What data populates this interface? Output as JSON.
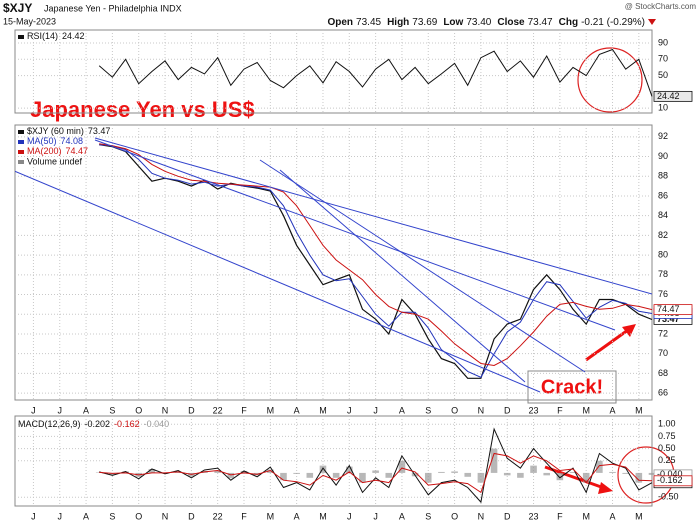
{
  "header": {
    "symbol": "$XJY",
    "name": "Japanese Yen - Philadelphia INDX",
    "date": "15-May-2023",
    "quote": [
      {
        "name": "Open",
        "value": "73.45"
      },
      {
        "name": "High",
        "value": "73.69"
      },
      {
        "name": "Low",
        "value": "73.40"
      },
      {
        "name": "Close",
        "value": "73.47"
      },
      {
        "name": "Chg",
        "value": "-0.21 (-0.29%)"
      }
    ],
    "watermark": "@ StockCharts.com"
  },
  "annotations": {
    "title": "Japanese Yen vs US$",
    "crack": "Crack!"
  },
  "chart_data": [
    {
      "type": "line",
      "grid": true,
      "xtick_labels": false,
      "x": [
        2.5,
        3,
        3.5,
        4,
        4.5,
        5,
        5.5,
        6,
        6.5,
        7,
        7.5,
        8,
        8.5,
        9,
        9.5,
        10,
        10.5,
        11,
        11.5,
        12,
        12.5,
        13,
        13.5,
        14,
        14.5,
        15,
        15.5,
        16,
        16.5,
        17,
        17.5,
        18,
        18.5,
        19,
        19.5,
        20,
        20.5,
        21,
        21.5,
        22,
        22.5,
        23,
        23.5
      ],
      "xlim": [
        -0.7,
        23.5
      ],
      "xticks": [
        {
          "value": 0,
          "label": "J"
        },
        {
          "value": 1,
          "label": "J"
        },
        {
          "value": 2,
          "label": "A"
        },
        {
          "value": 3,
          "label": "S"
        },
        {
          "value": 4,
          "label": "O"
        },
        {
          "value": 5,
          "label": "N"
        },
        {
          "value": 6,
          "label": "D"
        },
        {
          "value": 7,
          "label": "22"
        },
        {
          "value": 8,
          "label": "F"
        },
        {
          "value": 9,
          "label": "M"
        },
        {
          "value": 10,
          "label": "A"
        },
        {
          "value": 11,
          "label": "M"
        },
        {
          "value": 12,
          "label": "J"
        },
        {
          "value": 13,
          "label": "J"
        },
        {
          "value": 14,
          "label": "A"
        },
        {
          "value": 15,
          "label": "S"
        },
        {
          "value": 16,
          "label": "O"
        },
        {
          "value": 17,
          "label": "N"
        },
        {
          "value": 18,
          "label": "D"
        },
        {
          "value": 19,
          "label": "23"
        },
        {
          "value": 20,
          "label": "F"
        },
        {
          "value": 21,
          "label": "M"
        },
        {
          "value": 22,
          "label": "A"
        },
        {
          "value": 23,
          "label": "M"
        }
      ],
      "ylim": [
        4,
        106
      ],
      "yticks": [
        10,
        50,
        70,
        90
      ],
      "series": [
        {
          "name": "RSI(14)",
          "color": "#111111",
          "values": [
            62,
            48,
            70,
            40,
            55,
            68,
            45,
            60,
            52,
            72,
            38,
            58,
            66,
            44,
            35,
            50,
            62,
            41,
            67,
            55,
            36,
            58,
            70,
            45,
            60,
            40,
            52,
            65,
            38,
            72,
            80,
            55,
            68,
            48,
            74,
            42,
            60,
            50,
            76,
            82,
            58,
            70,
            24.42
          ]
        }
      ]
    },
    {
      "type": "line",
      "grid": true,
      "xtick_labels": true,
      "x": [
        2.5,
        3,
        3.5,
        4,
        4.5,
        5,
        5.5,
        6,
        6.5,
        7,
        7.5,
        8,
        8.5,
        9,
        9.5,
        10,
        10.5,
        11,
        11.5,
        12,
        12.5,
        13,
        13.5,
        14,
        14.5,
        15,
        15.5,
        16,
        16.5,
        17,
        17.5,
        18,
        18.5,
        19,
        19.5,
        20,
        20.5,
        21,
        21.5,
        22,
        22.5,
        23,
        23.5
      ],
      "xlim": [
        -0.7,
        23.5
      ],
      "xticks": [
        {
          "value": 0,
          "label": "J"
        },
        {
          "value": 1,
          "label": "J"
        },
        {
          "value": 2,
          "label": "A"
        },
        {
          "value": 3,
          "label": "S"
        },
        {
          "value": 4,
          "label": "O"
        },
        {
          "value": 5,
          "label": "N"
        },
        {
          "value": 6,
          "label": "D"
        },
        {
          "value": 7,
          "label": "22"
        },
        {
          "value": 8,
          "label": "F"
        },
        {
          "value": 9,
          "label": "M"
        },
        {
          "value": 10,
          "label": "A"
        },
        {
          "value": 11,
          "label": "M"
        },
        {
          "value": 12,
          "label": "J"
        },
        {
          "value": 13,
          "label": "J"
        },
        {
          "value": 14,
          "label": "A"
        },
        {
          "value": 15,
          "label": "S"
        },
        {
          "value": 16,
          "label": "O"
        },
        {
          "value": 17,
          "label": "N"
        },
        {
          "value": 18,
          "label": "D"
        },
        {
          "value": 19,
          "label": "23"
        },
        {
          "value": 20,
          "label": "F"
        },
        {
          "value": 21,
          "label": "M"
        },
        {
          "value": 22,
          "label": "A"
        },
        {
          "value": 23,
          "label": "M"
        }
      ],
      "ylim": [
        65.3,
        93.2
      ],
      "yticks": [
        66,
        68,
        70,
        72,
        74,
        76,
        78,
        80,
        82,
        84,
        86,
        88,
        90,
        92
      ],
      "legend_note": "Volume undef",
      "series": [
        {
          "name": "$XJY (60 min)",
          "color": "#111111",
          "values": [
            91.2,
            91,
            90.5,
            89,
            87.5,
            87.8,
            87.5,
            87,
            87.6,
            86.7,
            87.3,
            87,
            86.8,
            86.5,
            84,
            81,
            79,
            77,
            77.5,
            78,
            74.5,
            73.5,
            72,
            75.5,
            74,
            71.5,
            69.5,
            69,
            67.5,
            67.5,
            71.5,
            73,
            73.5,
            76.5,
            78,
            76.5,
            74.5,
            73,
            75.5,
            75.5,
            75,
            74,
            73.47
          ]
        },
        {
          "name": "MA(50)",
          "color": "#2233bb",
          "values": [
            91.2,
            91.1,
            90.7,
            89.7,
            88.3,
            87.8,
            87.6,
            87.2,
            87.4,
            87,
            87.2,
            87,
            86.9,
            86.6,
            85,
            82.3,
            80,
            78,
            77.4,
            77.6,
            75.8,
            74,
            72.8,
            74.2,
            74.2,
            72.6,
            70.4,
            69.4,
            68.2,
            67.6,
            70,
            72.2,
            73.2,
            75.5,
            77.3,
            77,
            75.3,
            73.6,
            74.7,
            75.4,
            75.1,
            74.3,
            74.08
          ]
        },
        {
          "name": "MA(200)",
          "color": "#cc1111",
          "values": [
            91.3,
            91.1,
            90.8,
            90.2,
            89.2,
            88.5,
            88,
            87.6,
            87.5,
            87.3,
            87.2,
            87.1,
            87,
            86.9,
            86.4,
            85,
            83,
            81,
            79.5,
            78.5,
            77.5,
            76,
            74.8,
            74.2,
            74,
            73.5,
            72.3,
            71,
            70,
            69,
            68.8,
            69.5,
            70.8,
            72.2,
            73.8,
            75,
            75.2,
            74.8,
            74.5,
            74.6,
            75,
            74.8,
            74.47
          ]
        }
      ]
    },
    {
      "type": "line",
      "grid": true,
      "xtick_labels": true,
      "legend_name": "MACD(12,26,9)",
      "x": [
        2.5,
        3,
        3.5,
        4,
        4.5,
        5,
        5.5,
        6,
        6.5,
        7,
        7.5,
        8,
        8.5,
        9,
        9.5,
        10,
        10.5,
        11,
        11.5,
        12,
        12.5,
        13,
        13.5,
        14,
        14.5,
        15,
        15.5,
        16,
        16.5,
        17,
        17.5,
        18,
        18.5,
        19,
        19.5,
        20,
        20.5,
        21,
        21.5,
        22,
        22.5,
        23,
        23.5
      ],
      "xlim": [
        -0.7,
        23.5
      ],
      "xticks": [
        {
          "value": 0,
          "label": "J"
        },
        {
          "value": 1,
          "label": "J"
        },
        {
          "value": 2,
          "label": "A"
        },
        {
          "value": 3,
          "label": "S"
        },
        {
          "value": 4,
          "label": "O"
        },
        {
          "value": 5,
          "label": "N"
        },
        {
          "value": 6,
          "label": "D"
        },
        {
          "value": 7,
          "label": "22"
        },
        {
          "value": 8,
          "label": "F"
        },
        {
          "value": 9,
          "label": "M"
        },
        {
          "value": 10,
          "label": "A"
        },
        {
          "value": 11,
          "label": "M"
        },
        {
          "value": 12,
          "label": "J"
        },
        {
          "value": 13,
          "label": "J"
        },
        {
          "value": 14,
          "label": "A"
        },
        {
          "value": 15,
          "label": "S"
        },
        {
          "value": 16,
          "label": "O"
        },
        {
          "value": 17,
          "label": "N"
        },
        {
          "value": 18,
          "label": "D"
        },
        {
          "value": 19,
          "label": "23"
        },
        {
          "value": 20,
          "label": "F"
        },
        {
          "value": 21,
          "label": "M"
        },
        {
          "value": 22,
          "label": "A"
        },
        {
          "value": 23,
          "label": "M"
        }
      ],
      "ylim": [
        -0.68,
        1.17
      ],
      "yticks": [
        {
          "value": 1,
          "label": "1.00"
        },
        {
          "value": 0.75,
          "label": "0.75"
        },
        {
          "value": 0.5,
          "label": "0.50"
        },
        {
          "value": 0.25,
          "label": "0.25"
        },
        {
          "value": -0.5,
          "label": "-0.50"
        }
      ],
      "series": [
        {
          "name": "Histogram",
          "color": "#9a9a9a",
          "style": "histogram",
          "last_label": "-0.040",
          "values": [
            0.01,
            -0.04,
            0.03,
            -0.08,
            0.08,
            -0.02,
            0.03,
            -0.07,
            0.04,
            0.05,
            -0.11,
            0.04,
            -0.05,
            0.07,
            -0.15,
            -0.02,
            -0.1,
            0.15,
            -0.1,
            0.13,
            -0.2,
            0.05,
            -0.1,
            0.25,
            -0.07,
            -0.2,
            0.02,
            0.03,
            -0.08,
            -0.2,
            0.5,
            -0.05,
            -0.1,
            0.15,
            -0.05,
            -0.15,
            0.02,
            -0.2,
            0.25,
            0.02,
            -0.02,
            -0.2,
            -0.04
          ]
        },
        {
          "name": "MACD",
          "color": "#111111",
          "values": [
            0.02,
            -0.05,
            0.03,
            -0.12,
            0.08,
            -0.02,
            0.05,
            -0.1,
            0.06,
            0.1,
            -0.15,
            0.04,
            -0.08,
            0.12,
            -0.3,
            -0.2,
            -0.35,
            0.1,
            -0.25,
            0.15,
            -0.4,
            -0.1,
            -0.3,
            0.35,
            -0.05,
            -0.45,
            -0.2,
            -0.15,
            -0.3,
            -0.6,
            0.9,
            0.3,
            0.1,
            0.5,
            0.2,
            -0.1,
            0.1,
            -0.4,
            0.4,
            0.2,
            0.1,
            -0.35,
            -0.202
          ]
        },
        {
          "name": "Signal",
          "color": "#cc1111",
          "values": [
            0.01,
            -0.01,
            0,
            -0.04,
            0,
            0,
            0.02,
            -0.03,
            0.02,
            0.05,
            -0.04,
            0,
            -0.03,
            0.05,
            -0.15,
            -0.18,
            -0.25,
            -0.05,
            -0.15,
            0.02,
            -0.2,
            -0.15,
            -0.2,
            0.1,
            0.02,
            -0.25,
            -0.22,
            -0.18,
            -0.22,
            -0.4,
            0.4,
            0.35,
            0.2,
            0.35,
            0.25,
            0.05,
            0.08,
            -0.2,
            0.15,
            0.18,
            0.12,
            -0.15,
            -0.162
          ]
        }
      ]
    }
  ]
}
